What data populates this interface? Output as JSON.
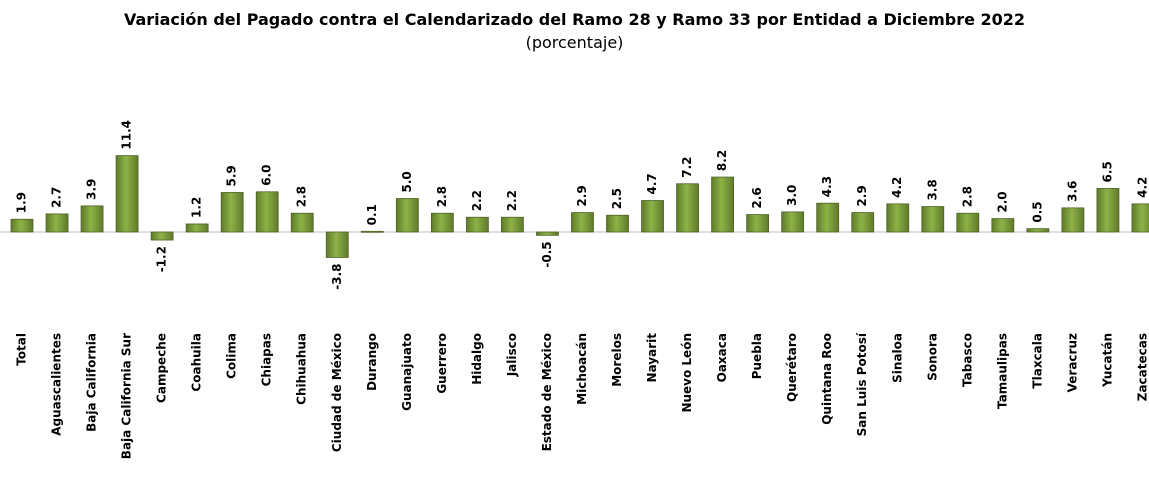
{
  "chart_data": {
    "type": "bar",
    "title": "Variación del Pagado contra el Calendarizado del Ramo 28 y Ramo 33 por Entidad a Diciembre 2022",
    "subtitle": "(porcentaje)",
    "color": "#77933c",
    "categories": [
      "Total",
      "Aguascalientes",
      "Baja California",
      "Baja California Sur",
      "Campeche",
      "Coahuila",
      "Colima",
      "Chiapas",
      "Chihuahua",
      "Ciudad de México",
      "Durango",
      "Guanajuato",
      "Guerrero",
      "Hidalgo",
      "Jalisco",
      "Estado de México",
      "Michoacán",
      "Morelos",
      "Nayarit",
      "Nuevo León",
      "Oaxaca",
      "Puebla",
      "Querétaro",
      "Quintana Roo",
      "San Luis Potosí",
      "Sinaloa",
      "Sonora",
      "Tabasco",
      "Tamaulipas",
      "Tlaxcala",
      "Veracruz",
      "Yucatán",
      "Zacatecas"
    ],
    "values": [
      1.9,
      2.7,
      3.9,
      11.4,
      -1.2,
      1.2,
      5.9,
      6.0,
      2.8,
      -3.8,
      0.1,
      5.0,
      2.8,
      2.2,
      2.2,
      -0.5,
      2.9,
      2.5,
      4.7,
      7.2,
      8.2,
      2.6,
      3.0,
      4.3,
      2.9,
      4.2,
      3.8,
      2.8,
      2.0,
      0.5,
      3.6,
      6.5,
      4.2
    ],
    "value_labels": [
      "1.9",
      "2.7",
      "3.9",
      "11.4",
      "-1.2",
      "1.2",
      "5.9",
      "6.0",
      "2.8",
      "-3.8",
      "0.1",
      "5.0",
      "2.8",
      "2.2",
      "2.2",
      "-0.5",
      "2.9",
      "2.5",
      "4.7",
      "7.2",
      "8.2",
      "2.6",
      "3.0",
      "4.3",
      "2.9",
      "4.2",
      "3.8",
      "2.8",
      "2.0",
      "0.5",
      "3.6",
      "6.5",
      "4.2"
    ]
  }
}
